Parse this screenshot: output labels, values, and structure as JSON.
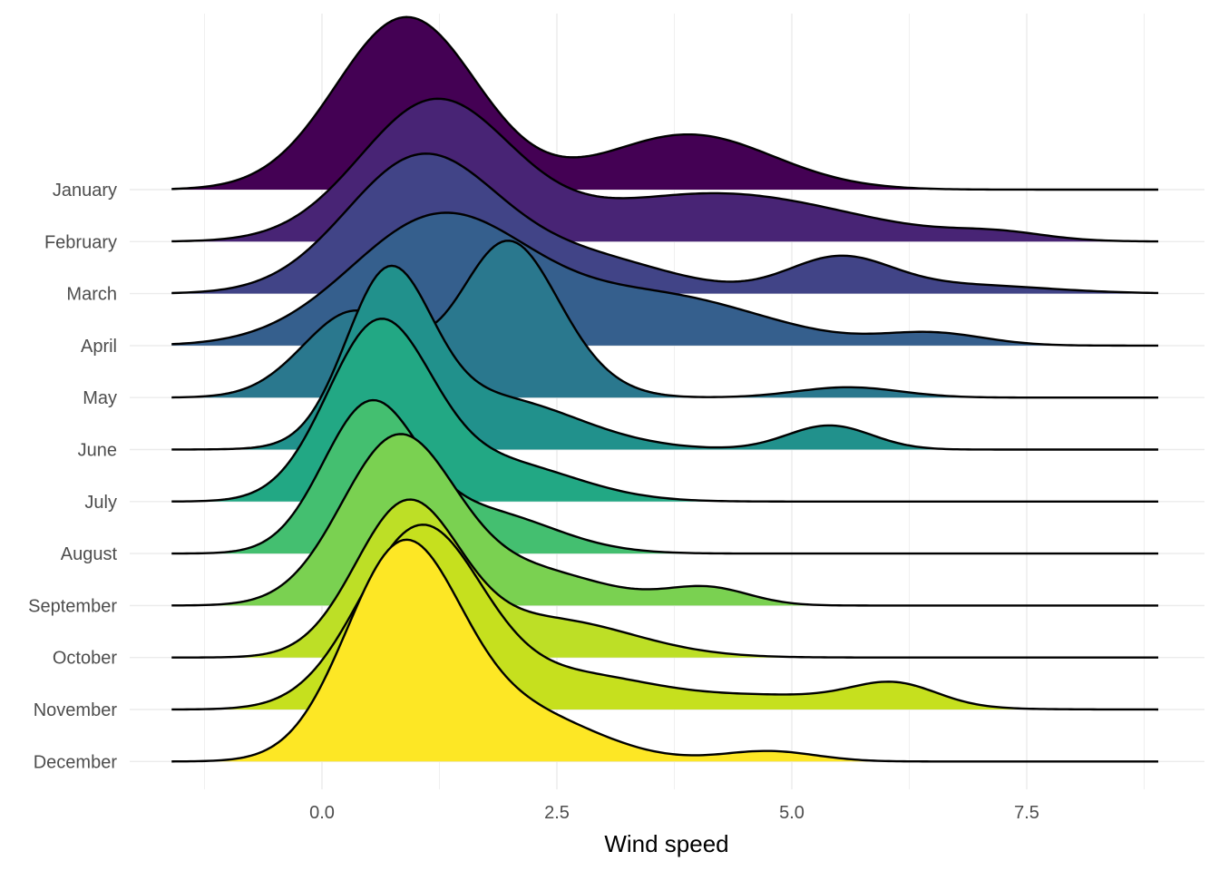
{
  "chart_data": {
    "type": "ridgeline",
    "title": "",
    "xlabel": "Wind speed",
    "ylabel": "",
    "xlim": [
      -1.6,
      8.9
    ],
    "xticks": [
      0.0,
      2.5,
      5.0,
      7.5
    ],
    "xtick_labels": [
      "0.0",
      "2.5",
      "5.0",
      "7.5"
    ],
    "grid": true,
    "legend": "none",
    "colormap": "viridis",
    "series": [
      {
        "name": "January",
        "color": "#440154",
        "peaks": [
          {
            "mu": 0.9,
            "sigma": 0.75,
            "h": 1.0
          },
          {
            "mu": 3.9,
            "sigma": 0.9,
            "h": 0.32
          }
        ]
      },
      {
        "name": "February",
        "color": "#482475",
        "peaks": [
          {
            "mu": 1.2,
            "sigma": 0.8,
            "h": 0.8
          },
          {
            "mu": 4.2,
            "sigma": 1.4,
            "h": 0.28
          },
          {
            "mu": 7.2,
            "sigma": 0.5,
            "h": 0.04
          }
        ]
      },
      {
        "name": "March",
        "color": "#414487",
        "peaks": [
          {
            "mu": 1.05,
            "sigma": 0.8,
            "h": 0.78
          },
          {
            "mu": 2.8,
            "sigma": 0.9,
            "h": 0.2
          },
          {
            "mu": 5.5,
            "sigma": 0.55,
            "h": 0.2
          },
          {
            "mu": 6.8,
            "sigma": 0.9,
            "h": 0.05
          }
        ]
      },
      {
        "name": "April",
        "color": "#355f8d",
        "peaks": [
          {
            "mu": 1.25,
            "sigma": 0.95,
            "h": 0.74
          },
          {
            "mu": 3.6,
            "sigma": 1.1,
            "h": 0.28
          },
          {
            "mu": 6.5,
            "sigma": 0.55,
            "h": 0.07
          }
        ]
      },
      {
        "name": "May",
        "color": "#2a788e",
        "peaks": [
          {
            "mu": 0.35,
            "sigma": 0.55,
            "h": 0.5
          },
          {
            "mu": 1.95,
            "sigma": 0.5,
            "h": 0.85
          },
          {
            "mu": 2.6,
            "sigma": 0.5,
            "h": 0.12
          },
          {
            "mu": 5.6,
            "sigma": 0.55,
            "h": 0.06
          }
        ]
      },
      {
        "name": "June",
        "color": "#21918c",
        "peaks": [
          {
            "mu": 0.7,
            "sigma": 0.45,
            "h": 0.92
          },
          {
            "mu": 1.8,
            "sigma": 0.9,
            "h": 0.3
          },
          {
            "mu": 5.4,
            "sigma": 0.45,
            "h": 0.14
          }
        ]
      },
      {
        "name": "July",
        "color": "#22a884",
        "peaks": [
          {
            "mu": 0.6,
            "sigma": 0.55,
            "h": 1.0
          },
          {
            "mu": 1.9,
            "sigma": 0.8,
            "h": 0.22
          }
        ]
      },
      {
        "name": "August",
        "color": "#44bf70",
        "peaks": [
          {
            "mu": 0.5,
            "sigma": 0.5,
            "h": 0.82
          },
          {
            "mu": 1.7,
            "sigma": 0.75,
            "h": 0.24
          }
        ]
      },
      {
        "name": "September",
        "color": "#7ad151",
        "peaks": [
          {
            "mu": 0.8,
            "sigma": 0.6,
            "h": 0.95
          },
          {
            "mu": 2.2,
            "sigma": 0.8,
            "h": 0.2
          },
          {
            "mu": 4.1,
            "sigma": 0.45,
            "h": 0.1
          }
        ]
      },
      {
        "name": "October",
        "color": "#bddf26",
        "peaks": [
          {
            "mu": 0.9,
            "sigma": 0.55,
            "h": 0.86
          },
          {
            "mu": 2.4,
            "sigma": 0.9,
            "h": 0.22
          }
        ]
      },
      {
        "name": "November",
        "color": "#c6e01e",
        "peaks": [
          {
            "mu": 1.05,
            "sigma": 0.65,
            "h": 1.05
          },
          {
            "mu": 2.7,
            "sigma": 0.8,
            "h": 0.18
          },
          {
            "mu": 4.8,
            "sigma": 1.1,
            "h": 0.08
          },
          {
            "mu": 6.1,
            "sigma": 0.45,
            "h": 0.12
          }
        ]
      },
      {
        "name": "December",
        "color": "#fde725",
        "peaks": [
          {
            "mu": 0.85,
            "sigma": 0.6,
            "h": 1.2
          },
          {
            "mu": 2.1,
            "sigma": 0.8,
            "h": 0.28
          },
          {
            "mu": 4.75,
            "sigma": 0.5,
            "h": 0.06
          }
        ]
      }
    ]
  }
}
